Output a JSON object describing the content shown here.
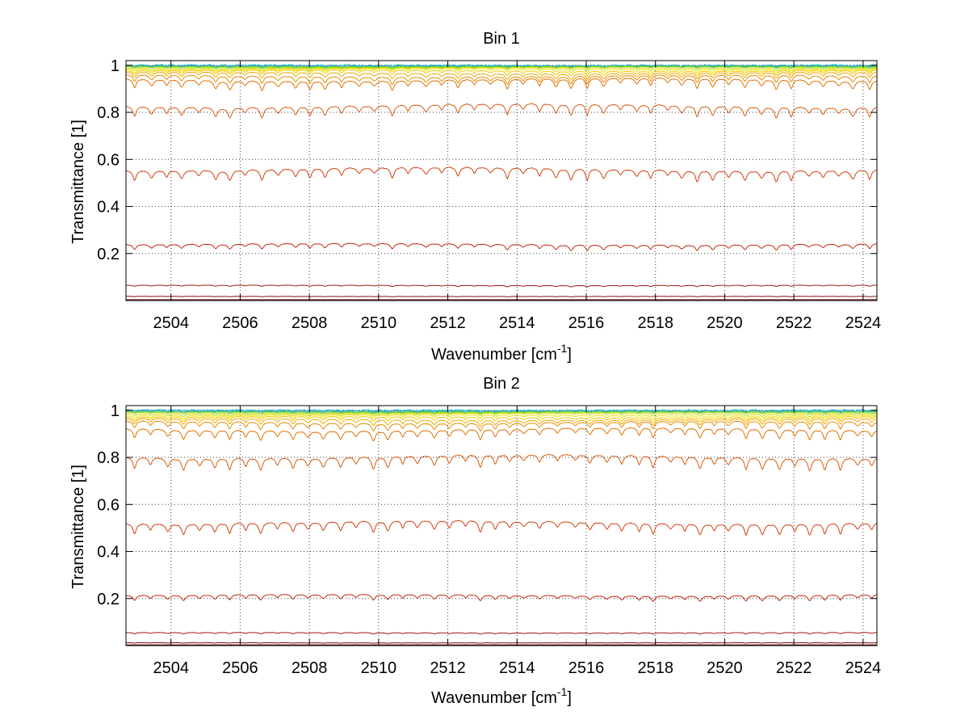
{
  "chart_data": [
    {
      "type": "line",
      "title": "Bin 1",
      "xlabel": "Wavenumber [cm",
      "xlabel_sup": "-1",
      "xlabel_end": "]",
      "ylabel": "Transmittance [1]",
      "xlim": [
        2502.7,
        2524.4
      ],
      "ylim": [
        0.0,
        1.02
      ],
      "xticks": [
        2504,
        2506,
        2508,
        2510,
        2512,
        2514,
        2516,
        2518,
        2520,
        2522,
        2524
      ],
      "yticks": [
        0.2,
        0.4,
        0.6,
        0.8,
        1
      ],
      "ytick_labels": [
        "0.2",
        "0.4",
        "0.6",
        "0.8",
        "1"
      ],
      "grid": true,
      "series": [
        {
          "baseline": 1.0,
          "dip": 0.004,
          "color": "#00bfbf",
          "noisy": true
        },
        {
          "baseline": 0.998,
          "dip": 0.004,
          "color": "#3399cc",
          "noisy": true
        },
        {
          "baseline": 0.996,
          "dip": 0.006,
          "color": "#55c855"
        },
        {
          "baseline": 0.994,
          "dip": 0.008,
          "color": "#8fd400"
        },
        {
          "baseline": 0.99,
          "dip": 0.012,
          "color": "#c8d800"
        },
        {
          "baseline": 0.985,
          "dip": 0.016,
          "color": "#f0e000"
        },
        {
          "baseline": 0.978,
          "dip": 0.02,
          "color": "#f0c800"
        },
        {
          "baseline": 0.968,
          "dip": 0.026,
          "color": "#f0a800"
        },
        {
          "baseline": 0.955,
          "dip": 0.034,
          "color": "#e88a00"
        },
        {
          "baseline": 0.94,
          "dip": 0.045,
          "color": "#e07000"
        },
        {
          "baseline": 0.83,
          "dip": 0.05,
          "color": "#d85a10"
        },
        {
          "baseline": 0.56,
          "dip": 0.05,
          "color": "#d04010"
        },
        {
          "baseline": 0.24,
          "dip": 0.025,
          "color": "#c02810"
        },
        {
          "baseline": 0.065,
          "dip": 0.006,
          "color": "#a01810"
        },
        {
          "baseline": 0.018,
          "dip": 0.002,
          "color": "#801010"
        },
        {
          "baseline": 0.004,
          "dip": 0.0,
          "color": "#600808"
        }
      ]
    },
    {
      "type": "line",
      "title": "Bin 2",
      "xlabel": "Wavenumber [cm",
      "xlabel_sup": "-1",
      "xlabel_end": "]",
      "ylabel": "Transmittance [1]",
      "xlim": [
        2502.7,
        2524.4
      ],
      "ylim": [
        0.0,
        1.02
      ],
      "xticks": [
        2504,
        2506,
        2508,
        2510,
        2512,
        2514,
        2516,
        2518,
        2520,
        2522,
        2524
      ],
      "yticks": [
        0.2,
        0.4,
        0.6,
        0.8,
        1
      ],
      "ytick_labels": [
        "0.2",
        "0.4",
        "0.6",
        "0.8",
        "1"
      ],
      "grid": true,
      "series": [
        {
          "baseline": 1.0,
          "dip": 0.004,
          "color": "#00bfbf",
          "noisy": true
        },
        {
          "baseline": 0.998,
          "dip": 0.004,
          "color": "#3399cc",
          "noisy": true
        },
        {
          "baseline": 0.995,
          "dip": 0.006,
          "color": "#55c855"
        },
        {
          "baseline": 0.992,
          "dip": 0.008,
          "color": "#8fd400"
        },
        {
          "baseline": 0.987,
          "dip": 0.012,
          "color": "#c8d800"
        },
        {
          "baseline": 0.98,
          "dip": 0.016,
          "color": "#f0e000"
        },
        {
          "baseline": 0.972,
          "dip": 0.02,
          "color": "#f0c800"
        },
        {
          "baseline": 0.962,
          "dip": 0.026,
          "color": "#f0a800"
        },
        {
          "baseline": 0.95,
          "dip": 0.034,
          "color": "#e88a00"
        },
        {
          "baseline": 0.92,
          "dip": 0.045,
          "color": "#e07000"
        },
        {
          "baseline": 0.805,
          "dip": 0.055,
          "color": "#d85a10"
        },
        {
          "baseline": 0.525,
          "dip": 0.05,
          "color": "#d04010"
        },
        {
          "baseline": 0.215,
          "dip": 0.025,
          "color": "#c02810"
        },
        {
          "baseline": 0.055,
          "dip": 0.006,
          "color": "#a01810"
        },
        {
          "baseline": 0.012,
          "dip": 0.002,
          "color": "#801010"
        },
        {
          "baseline": 0.003,
          "dip": 0.0,
          "color": "#600808"
        }
      ]
    }
  ]
}
